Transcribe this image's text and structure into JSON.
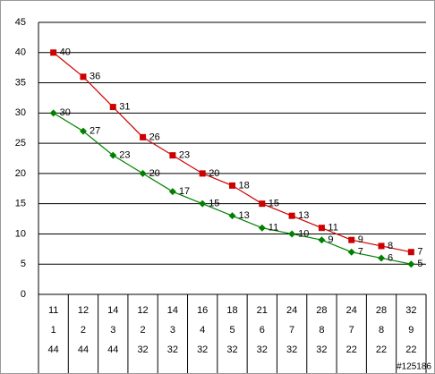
{
  "chart_data": {
    "type": "line",
    "categories": [
      null,
      null,
      null,
      null,
      null,
      null,
      null,
      null,
      null,
      null,
      null,
      null,
      null
    ],
    "series": [
      {
        "name": null,
        "color": "#cc0000",
        "marker": "square",
        "values": [
          40,
          36,
          31,
          26,
          23,
          20,
          18,
          15,
          13,
          11,
          9,
          8,
          7
        ]
      },
      {
        "name": null,
        "color": "#008000",
        "marker": "diamond",
        "values": [
          30,
          27,
          23,
          20,
          17,
          15,
          13,
          11,
          10,
          9,
          7,
          6,
          5
        ]
      }
    ],
    "ylim": [
      0,
      45
    ],
    "yticks": [
      0,
      5,
      10,
      15,
      20,
      25,
      30,
      35,
      40,
      45
    ],
    "grid": true,
    "table_rows": [
      [
        11,
        12,
        14,
        12,
        14,
        16,
        18,
        21,
        24,
        28,
        24,
        28,
        32
      ],
      [
        1,
        2,
        3,
        2,
        3,
        4,
        5,
        6,
        7,
        8,
        7,
        8,
        9
      ],
      [
        44,
        44,
        44,
        32,
        32,
        32,
        32,
        32,
        32,
        32,
        22,
        22,
        22
      ]
    ],
    "watermark": "#125186"
  }
}
